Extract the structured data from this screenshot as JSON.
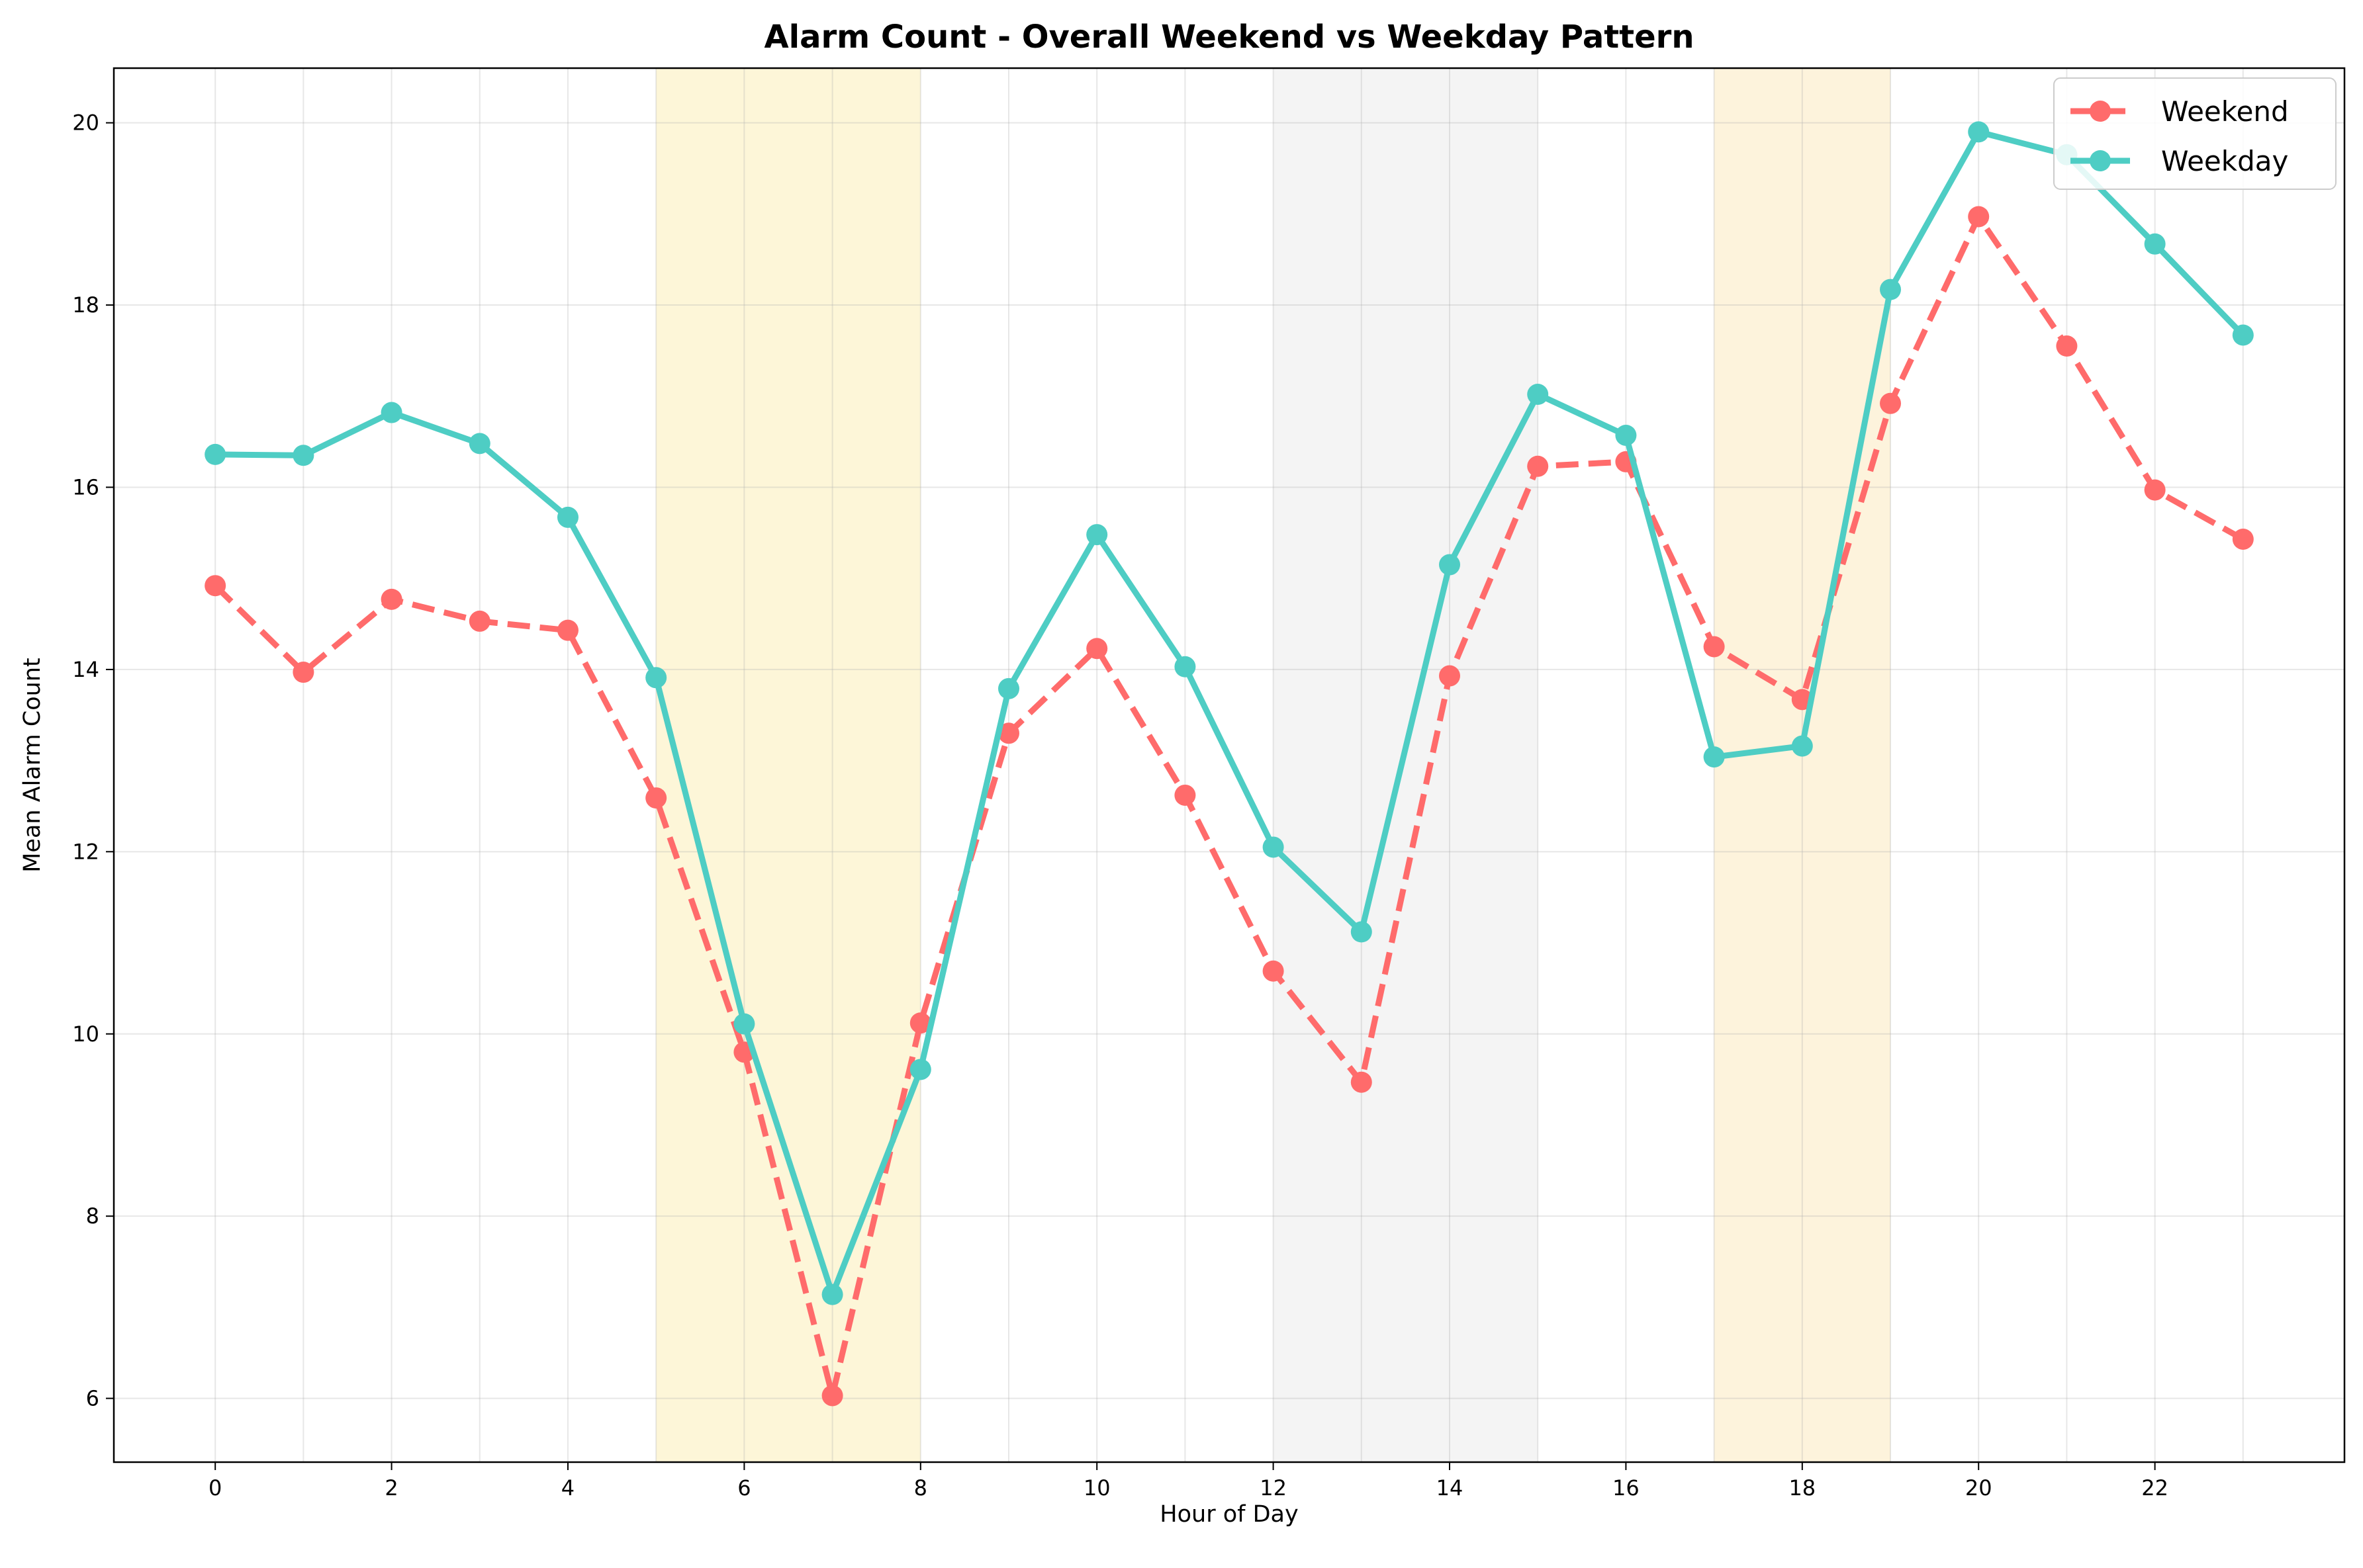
{
  "chart_data": {
    "type": "line",
    "title": "Alarm Count - Overall Weekend vs Weekday Pattern",
    "xlabel": "Hour of Day",
    "ylabel": "Mean Alarm Count",
    "xlim": [
      -1.15,
      24.15
    ],
    "ylim": [
      5.3,
      20.6
    ],
    "xticks": [
      0,
      2,
      4,
      6,
      8,
      10,
      12,
      14,
      16,
      18,
      20,
      22
    ],
    "yticks": [
      6,
      8,
      10,
      12,
      14,
      16,
      18,
      20
    ],
    "grid": true,
    "legend_position": "top-right",
    "x": [
      0,
      1,
      2,
      3,
      4,
      5,
      6,
      7,
      8,
      9,
      10,
      11,
      12,
      13,
      14,
      15,
      16,
      17,
      18,
      19,
      20,
      21,
      22,
      23
    ],
    "shaded_regions": [
      {
        "x_start": 5,
        "x_end": 8,
        "color": "#fdf6d8"
      },
      {
        "x_start": 12,
        "x_end": 15,
        "color": "#f4f4f4"
      },
      {
        "x_start": 17,
        "x_end": 19,
        "color": "#fdf3dc"
      }
    ],
    "series": [
      {
        "name": "Weekend",
        "color": "#ff6b6b",
        "line_style": "dashed",
        "values": [
          14.92,
          13.97,
          14.77,
          14.53,
          14.43,
          12.59,
          9.8,
          6.03,
          10.12,
          13.3,
          14.23,
          12.62,
          10.69,
          9.47,
          13.93,
          16.23,
          16.28,
          14.25,
          13.67,
          16.92,
          18.97,
          17.55,
          15.97,
          15.43
        ]
      },
      {
        "name": "Weekday",
        "color": "#4ecdc4",
        "line_style": "solid",
        "values": [
          16.36,
          16.35,
          16.82,
          16.48,
          15.67,
          13.91,
          10.11,
          7.14,
          9.61,
          13.79,
          15.48,
          14.03,
          12.05,
          11.12,
          15.15,
          17.02,
          16.57,
          13.04,
          13.16,
          18.17,
          19.9,
          19.65,
          18.67,
          17.67
        ]
      }
    ]
  }
}
